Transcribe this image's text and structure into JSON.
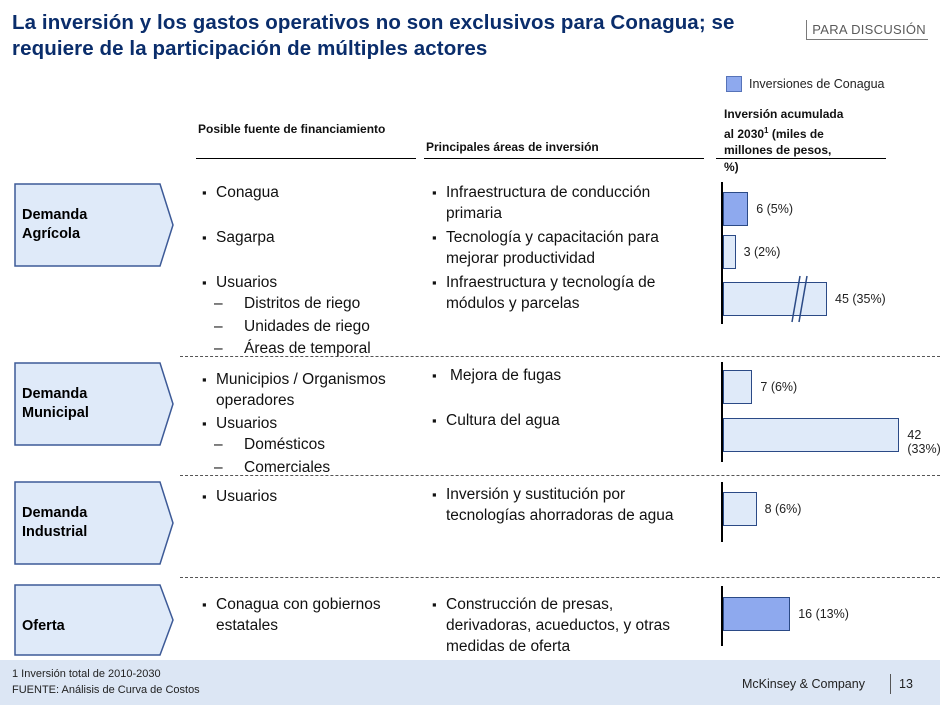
{
  "title": "La inversión y los gastos operativos no son exclusivos para Conagua; se requiere de la participación de múltiples actores",
  "tag": "PARA DISCUSIÓN",
  "legend": {
    "label": "Inversiones de Conagua",
    "color": "#8EA9EE"
  },
  "headers": {
    "fuente": "Posible fuente de financiamiento",
    "areas": "Principales áreas de inversión",
    "inversion_l1": "Inversión acumulada",
    "inversion_l2": "al 2030",
    "inversion_sup": "1",
    "inversion_l2b": " (miles de",
    "inversion_l3": "millones de pesos,",
    "inversion_l4": "%)"
  },
  "rows": [
    {
      "label": "Demanda Agrícola",
      "fuentes": [
        "Conagua",
        "Sagarpa",
        "Usuarios"
      ],
      "sub_fuentes": [
        "Distritos de riego",
        "Unidades de riego",
        "Áreas de temporal"
      ],
      "areas": [
        "Infraestructura de conducción primaria",
        "Tecnología y capacitación para mejorar productividad",
        "Infraestructura y tecnología de módulos y  parcelas"
      ],
      "bars": [
        "6 (5%)",
        "3 (2%)",
        "45 (35%)"
      ]
    },
    {
      "label": "Demanda Municipal",
      "fuentes": [
        "Municipios / Organismos operadores",
        "Usuarios"
      ],
      "sub_fuentes": [
        "Domésticos",
        "Comerciales"
      ],
      "areas": [
        "Mejora de fugas",
        "Cultura del agua"
      ],
      "bars": [
        "7 (6%)",
        "42 (33%)"
      ]
    },
    {
      "label": "Demanda Industrial",
      "fuentes": [
        "Usuarios"
      ],
      "areas": [
        "Inversión y sustitución por tecnologías ahorradoras de agua"
      ],
      "bars": [
        "8 (6%)"
      ]
    },
    {
      "label": "Oferta",
      "fuentes": [
        "Conagua con gobiernos estatales"
      ],
      "areas": [
        "Construcción de presas, derivadoras, acueductos, y otras medidas de oferta"
      ],
      "bars": [
        "16 (13%)"
      ]
    }
  ],
  "chart_data": {
    "type": "bar",
    "categories": [
      "Demanda Agrícola",
      "Demanda Agrícola",
      "Demanda Agrícola",
      "Demanda Municipal",
      "Demanda Municipal",
      "Demanda Industrial",
      "Oferta"
    ],
    "values": [
      6,
      3,
      45,
      7,
      42,
      8,
      16
    ],
    "percent": [
      5,
      2,
      35,
      6,
      33,
      6,
      13
    ],
    "conagua": [
      true,
      false,
      false,
      false,
      false,
      false,
      true
    ],
    "axis_break": [
      false,
      false,
      true,
      false,
      false,
      false,
      false
    ]
  },
  "footer": {
    "note": "1 Inversión total de 2010-2030",
    "source": "FUENTE:  Análisis de Curva  de Costos",
    "company": "McKinsey & Company",
    "page": "13"
  }
}
